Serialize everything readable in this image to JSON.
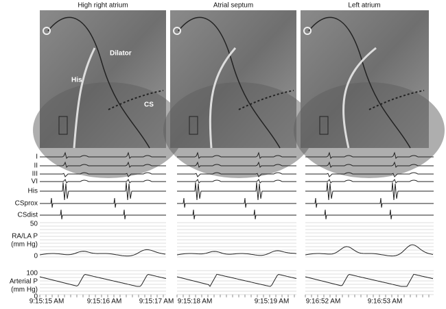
{
  "panels": [
    {
      "title": "High right atrium",
      "time_labels": [
        "9:15:15 AM",
        "9:15:16 AM",
        "9:15:17 AM"
      ]
    },
    {
      "title": "Atrial septum",
      "time_labels": [
        "9:15:18 AM",
        "9:15:19 AM"
      ]
    },
    {
      "title": "Left atrium",
      "time_labels": [
        "9:16:52 AM",
        "9:16:53 AM"
      ]
    }
  ],
  "image_labels": [
    "Dilator",
    "His",
    "CS"
  ],
  "trace_labels": [
    "I",
    "II",
    "III",
    "VI",
    "His",
    "CSprox",
    "CSdist"
  ],
  "pressure_la": {
    "label": "RA/LA P",
    "unit": "(mm Hg)",
    "scale_top": 50,
    "scale_bottom": 0
  },
  "pressure_art": {
    "label": "Arterial P",
    "unit": "(mm Hg)",
    "scale_top": 100,
    "scale_bottom": 0
  }
}
